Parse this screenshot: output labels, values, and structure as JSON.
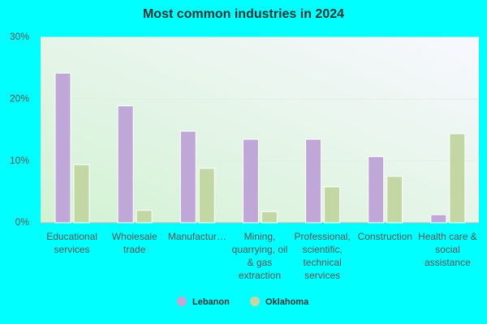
{
  "chart_data": {
    "type": "bar",
    "title": "Most common industries in 2024",
    "categories": [
      "Educational services",
      "Wholesale trade",
      "Manufactur…",
      "Mining, quarrying, oil & gas extraction",
      "Professional, scientific, technical services",
      "Construction",
      "Health care & social assistance"
    ],
    "series": [
      {
        "name": "Lebanon",
        "color": "#bfa8d8",
        "values": [
          24.2,
          18.9,
          14.8,
          13.5,
          13.5,
          10.7,
          1.3
        ]
      },
      {
        "name": "Oklahoma",
        "color": "#c3d7a5",
        "values": [
          9.4,
          2.0,
          8.8,
          1.8,
          5.8,
          7.5,
          14.4
        ]
      }
    ],
    "ylim": [
      0,
      30
    ],
    "yticks": [
      {
        "value": 0,
        "label": "0%"
      },
      {
        "value": 10,
        "label": "10%"
      },
      {
        "value": 20,
        "label": "20%"
      },
      {
        "value": 30,
        "label": "30%"
      }
    ],
    "grid": true
  }
}
